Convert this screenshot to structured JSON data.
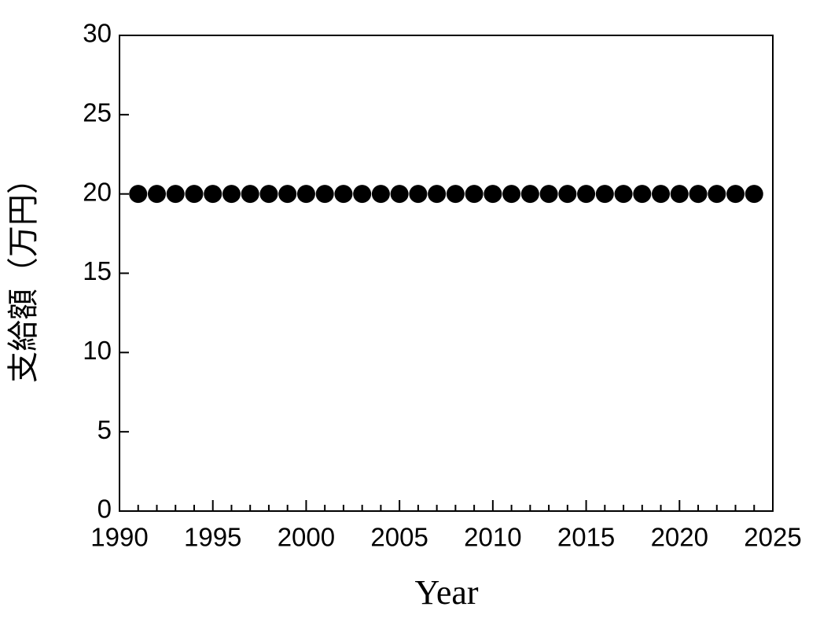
{
  "chart_data": {
    "type": "scatter",
    "x_label": "Year",
    "y_label": "支給額（万円）",
    "x": [
      1991,
      1992,
      1993,
      1994,
      1995,
      1996,
      1997,
      1998,
      1999,
      2000,
      2001,
      2002,
      2003,
      2004,
      2005,
      2006,
      2007,
      2008,
      2009,
      2010,
      2011,
      2012,
      2013,
      2014,
      2015,
      2016,
      2017,
      2018,
      2019,
      2020,
      2021,
      2022,
      2023,
      2024
    ],
    "values": [
      20,
      20,
      20,
      20,
      20,
      20,
      20,
      20,
      20,
      20,
      20,
      20,
      20,
      20,
      20,
      20,
      20,
      20,
      20,
      20,
      20,
      20,
      20,
      20,
      20,
      20,
      20,
      20,
      20,
      20,
      20,
      20,
      20,
      20
    ],
    "color": "#000000",
    "xlim": [
      1990,
      2025
    ],
    "xticks": [
      1990,
      1995,
      2000,
      2005,
      2010,
      2015,
      2020,
      2025
    ],
    "x_minor_tick_step": 1,
    "ylim": [
      0,
      30
    ],
    "yticks": [
      0,
      5,
      10,
      15,
      20,
      25,
      30
    ],
    "grid": false
  }
}
